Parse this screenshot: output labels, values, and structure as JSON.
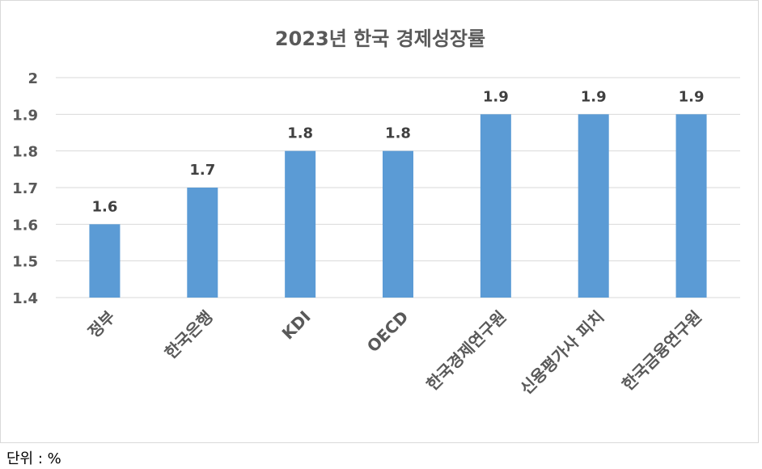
{
  "chart_data": {
    "type": "bar",
    "title": "2023년 한국 경제성장률",
    "categories": [
      "정부",
      "한국은행",
      "KDI",
      "OECD",
      "한국경제연구원",
      "신용평가사 피치",
      "한국금융연구원"
    ],
    "values": [
      1.6,
      1.7,
      1.8,
      1.8,
      1.9,
      1.9,
      1.9
    ],
    "data_labels": [
      "1.6",
      "1.7",
      "1.8",
      "1.8",
      "1.9",
      "1.9",
      "1.9"
    ],
    "y_ticks": [
      "1.4",
      "1.5",
      "1.6",
      "1.7",
      "1.8",
      "1.9",
      "2"
    ],
    "ylim": [
      1.4,
      2.0
    ],
    "grid": true,
    "legend": "none",
    "bar_color": "#5b9bd5",
    "grid_color": "#d9d9d9"
  },
  "unit_note": "단위 : %"
}
